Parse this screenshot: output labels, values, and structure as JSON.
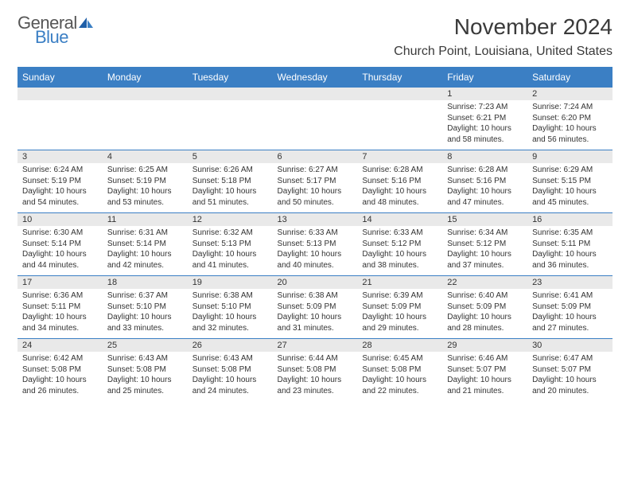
{
  "brand": {
    "part1": "General",
    "part2": "Blue",
    "color_accent": "#3b7fc4",
    "color_text": "#565656"
  },
  "header": {
    "month_title": "November 2024",
    "location": "Church Point, Louisiana, United States"
  },
  "styling": {
    "header_bg": "#3b7fc4",
    "header_text": "#ffffff",
    "daynum_bg": "#e9e9e9",
    "border_color": "#3b7fc4",
    "body_text": "#333333",
    "page_bg": "#ffffff",
    "font_family": "Arial",
    "month_title_fontsize": 28,
    "location_fontsize": 16,
    "dayhead_fontsize": 12,
    "daynum_fontsize": 11,
    "cell_fontsize": 10
  },
  "day_headers": [
    "Sunday",
    "Monday",
    "Tuesday",
    "Wednesday",
    "Thursday",
    "Friday",
    "Saturday"
  ],
  "weeks": [
    [
      {
        "n": "",
        "sr": "",
        "ss": "",
        "dl": ""
      },
      {
        "n": "",
        "sr": "",
        "ss": "",
        "dl": ""
      },
      {
        "n": "",
        "sr": "",
        "ss": "",
        "dl": ""
      },
      {
        "n": "",
        "sr": "",
        "ss": "",
        "dl": ""
      },
      {
        "n": "",
        "sr": "",
        "ss": "",
        "dl": ""
      },
      {
        "n": "1",
        "sr": "Sunrise: 7:23 AM",
        "ss": "Sunset: 6:21 PM",
        "dl": "Daylight: 10 hours and 58 minutes."
      },
      {
        "n": "2",
        "sr": "Sunrise: 7:24 AM",
        "ss": "Sunset: 6:20 PM",
        "dl": "Daylight: 10 hours and 56 minutes."
      }
    ],
    [
      {
        "n": "3",
        "sr": "Sunrise: 6:24 AM",
        "ss": "Sunset: 5:19 PM",
        "dl": "Daylight: 10 hours and 54 minutes."
      },
      {
        "n": "4",
        "sr": "Sunrise: 6:25 AM",
        "ss": "Sunset: 5:19 PM",
        "dl": "Daylight: 10 hours and 53 minutes."
      },
      {
        "n": "5",
        "sr": "Sunrise: 6:26 AM",
        "ss": "Sunset: 5:18 PM",
        "dl": "Daylight: 10 hours and 51 minutes."
      },
      {
        "n": "6",
        "sr": "Sunrise: 6:27 AM",
        "ss": "Sunset: 5:17 PM",
        "dl": "Daylight: 10 hours and 50 minutes."
      },
      {
        "n": "7",
        "sr": "Sunrise: 6:28 AM",
        "ss": "Sunset: 5:16 PM",
        "dl": "Daylight: 10 hours and 48 minutes."
      },
      {
        "n": "8",
        "sr": "Sunrise: 6:28 AM",
        "ss": "Sunset: 5:16 PM",
        "dl": "Daylight: 10 hours and 47 minutes."
      },
      {
        "n": "9",
        "sr": "Sunrise: 6:29 AM",
        "ss": "Sunset: 5:15 PM",
        "dl": "Daylight: 10 hours and 45 minutes."
      }
    ],
    [
      {
        "n": "10",
        "sr": "Sunrise: 6:30 AM",
        "ss": "Sunset: 5:14 PM",
        "dl": "Daylight: 10 hours and 44 minutes."
      },
      {
        "n": "11",
        "sr": "Sunrise: 6:31 AM",
        "ss": "Sunset: 5:14 PM",
        "dl": "Daylight: 10 hours and 42 minutes."
      },
      {
        "n": "12",
        "sr": "Sunrise: 6:32 AM",
        "ss": "Sunset: 5:13 PM",
        "dl": "Daylight: 10 hours and 41 minutes."
      },
      {
        "n": "13",
        "sr": "Sunrise: 6:33 AM",
        "ss": "Sunset: 5:13 PM",
        "dl": "Daylight: 10 hours and 40 minutes."
      },
      {
        "n": "14",
        "sr": "Sunrise: 6:33 AM",
        "ss": "Sunset: 5:12 PM",
        "dl": "Daylight: 10 hours and 38 minutes."
      },
      {
        "n": "15",
        "sr": "Sunrise: 6:34 AM",
        "ss": "Sunset: 5:12 PM",
        "dl": "Daylight: 10 hours and 37 minutes."
      },
      {
        "n": "16",
        "sr": "Sunrise: 6:35 AM",
        "ss": "Sunset: 5:11 PM",
        "dl": "Daylight: 10 hours and 36 minutes."
      }
    ],
    [
      {
        "n": "17",
        "sr": "Sunrise: 6:36 AM",
        "ss": "Sunset: 5:11 PM",
        "dl": "Daylight: 10 hours and 34 minutes."
      },
      {
        "n": "18",
        "sr": "Sunrise: 6:37 AM",
        "ss": "Sunset: 5:10 PM",
        "dl": "Daylight: 10 hours and 33 minutes."
      },
      {
        "n": "19",
        "sr": "Sunrise: 6:38 AM",
        "ss": "Sunset: 5:10 PM",
        "dl": "Daylight: 10 hours and 32 minutes."
      },
      {
        "n": "20",
        "sr": "Sunrise: 6:38 AM",
        "ss": "Sunset: 5:09 PM",
        "dl": "Daylight: 10 hours and 31 minutes."
      },
      {
        "n": "21",
        "sr": "Sunrise: 6:39 AM",
        "ss": "Sunset: 5:09 PM",
        "dl": "Daylight: 10 hours and 29 minutes."
      },
      {
        "n": "22",
        "sr": "Sunrise: 6:40 AM",
        "ss": "Sunset: 5:09 PM",
        "dl": "Daylight: 10 hours and 28 minutes."
      },
      {
        "n": "23",
        "sr": "Sunrise: 6:41 AM",
        "ss": "Sunset: 5:09 PM",
        "dl": "Daylight: 10 hours and 27 minutes."
      }
    ],
    [
      {
        "n": "24",
        "sr": "Sunrise: 6:42 AM",
        "ss": "Sunset: 5:08 PM",
        "dl": "Daylight: 10 hours and 26 minutes."
      },
      {
        "n": "25",
        "sr": "Sunrise: 6:43 AM",
        "ss": "Sunset: 5:08 PM",
        "dl": "Daylight: 10 hours and 25 minutes."
      },
      {
        "n": "26",
        "sr": "Sunrise: 6:43 AM",
        "ss": "Sunset: 5:08 PM",
        "dl": "Daylight: 10 hours and 24 minutes."
      },
      {
        "n": "27",
        "sr": "Sunrise: 6:44 AM",
        "ss": "Sunset: 5:08 PM",
        "dl": "Daylight: 10 hours and 23 minutes."
      },
      {
        "n": "28",
        "sr": "Sunrise: 6:45 AM",
        "ss": "Sunset: 5:08 PM",
        "dl": "Daylight: 10 hours and 22 minutes."
      },
      {
        "n": "29",
        "sr": "Sunrise: 6:46 AM",
        "ss": "Sunset: 5:07 PM",
        "dl": "Daylight: 10 hours and 21 minutes."
      },
      {
        "n": "30",
        "sr": "Sunrise: 6:47 AM",
        "ss": "Sunset: 5:07 PM",
        "dl": "Daylight: 10 hours and 20 minutes."
      }
    ]
  ]
}
